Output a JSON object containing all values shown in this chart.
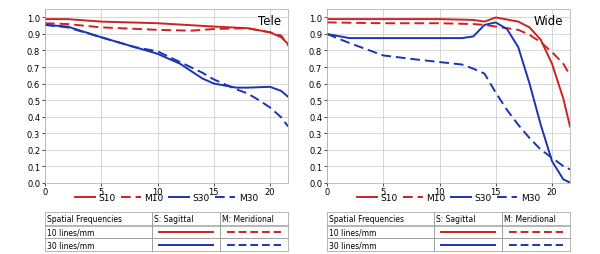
{
  "tele": {
    "title": "Tele",
    "S10": [
      [
        0,
        0.99
      ],
      [
        2,
        0.99
      ],
      [
        5,
        0.975
      ],
      [
        10,
        0.965
      ],
      [
        15,
        0.945
      ],
      [
        18,
        0.935
      ],
      [
        20,
        0.91
      ],
      [
        21,
        0.88
      ],
      [
        21.6,
        0.84
      ]
    ],
    "M10": [
      [
        0,
        0.965
      ],
      [
        2,
        0.96
      ],
      [
        5,
        0.94
      ],
      [
        10,
        0.925
      ],
      [
        13,
        0.92
      ],
      [
        15,
        0.93
      ],
      [
        18,
        0.935
      ],
      [
        20,
        0.91
      ],
      [
        21,
        0.89
      ],
      [
        21.6,
        0.83
      ]
    ],
    "S30": [
      [
        0,
        0.955
      ],
      [
        2,
        0.945
      ],
      [
        5,
        0.88
      ],
      [
        8,
        0.82
      ],
      [
        10,
        0.78
      ],
      [
        12,
        0.72
      ],
      [
        14,
        0.63
      ],
      [
        15,
        0.6
      ],
      [
        17,
        0.575
      ],
      [
        18,
        0.575
      ],
      [
        20,
        0.58
      ],
      [
        21,
        0.555
      ],
      [
        21.6,
        0.52
      ]
    ],
    "M30": [
      [
        0,
        0.955
      ],
      [
        2,
        0.94
      ],
      [
        5,
        0.88
      ],
      [
        8,
        0.82
      ],
      [
        10,
        0.795
      ],
      [
        12,
        0.73
      ],
      [
        14,
        0.665
      ],
      [
        15,
        0.625
      ],
      [
        17,
        0.565
      ],
      [
        18,
        0.54
      ],
      [
        19,
        0.5
      ],
      [
        20,
        0.455
      ],
      [
        21,
        0.395
      ],
      [
        21.6,
        0.34
      ]
    ]
  },
  "wide": {
    "title": "Wide",
    "S10": [
      [
        0,
        0.99
      ],
      [
        5,
        0.99
      ],
      [
        10,
        0.99
      ],
      [
        13,
        0.985
      ],
      [
        14,
        0.975
      ],
      [
        15,
        1.0
      ],
      [
        17,
        0.975
      ],
      [
        18,
        0.94
      ],
      [
        19,
        0.865
      ],
      [
        20,
        0.72
      ],
      [
        21,
        0.51
      ],
      [
        21.6,
        0.34
      ]
    ],
    "M10": [
      [
        0,
        0.97
      ],
      [
        5,
        0.965
      ],
      [
        10,
        0.965
      ],
      [
        13,
        0.96
      ],
      [
        14,
        0.955
      ],
      [
        15,
        0.945
      ],
      [
        17,
        0.925
      ],
      [
        18,
        0.895
      ],
      [
        19,
        0.85
      ],
      [
        20,
        0.79
      ],
      [
        21,
        0.72
      ],
      [
        21.6,
        0.65
      ]
    ],
    "S30": [
      [
        0,
        0.9
      ],
      [
        2,
        0.875
      ],
      [
        5,
        0.875
      ],
      [
        8,
        0.875
      ],
      [
        10,
        0.875
      ],
      [
        12,
        0.875
      ],
      [
        13,
        0.885
      ],
      [
        14,
        0.955
      ],
      [
        15,
        0.97
      ],
      [
        16,
        0.93
      ],
      [
        17,
        0.82
      ],
      [
        18,
        0.6
      ],
      [
        19,
        0.35
      ],
      [
        20,
        0.13
      ],
      [
        21,
        0.02
      ],
      [
        21.6,
        0.0
      ]
    ],
    "M30": [
      [
        0,
        0.9
      ],
      [
        2,
        0.845
      ],
      [
        5,
        0.77
      ],
      [
        8,
        0.745
      ],
      [
        10,
        0.73
      ],
      [
        12,
        0.715
      ],
      [
        13,
        0.69
      ],
      [
        14,
        0.66
      ],
      [
        15,
        0.545
      ],
      [
        16,
        0.44
      ],
      [
        17,
        0.35
      ],
      [
        18,
        0.27
      ],
      [
        19,
        0.2
      ],
      [
        20,
        0.15
      ],
      [
        21,
        0.1
      ],
      [
        21.6,
        0.08
      ]
    ]
  },
  "colors": {
    "red": "#cc2222",
    "blue": "#1a35b0"
  },
  "xlim": [
    0,
    21.6
  ],
  "ylim": [
    0,
    1.05
  ],
  "yticks": [
    0,
    0.1,
    0.2,
    0.3,
    0.4,
    0.5,
    0.6,
    0.7,
    0.8,
    0.9,
    1.0
  ],
  "xticks": [
    0,
    5,
    10,
    15,
    20
  ],
  "chart_keys": [
    "tele",
    "wide"
  ],
  "legend_labels": [
    "S10",
    "M10",
    "S30",
    "M30"
  ],
  "table_col0_items": [
    "Spatial Frequencies",
    "10 lines/mm",
    "30 lines/mm"
  ],
  "table_col1_header": "S: Sagittal",
  "table_col2_header": "M: Meridional"
}
